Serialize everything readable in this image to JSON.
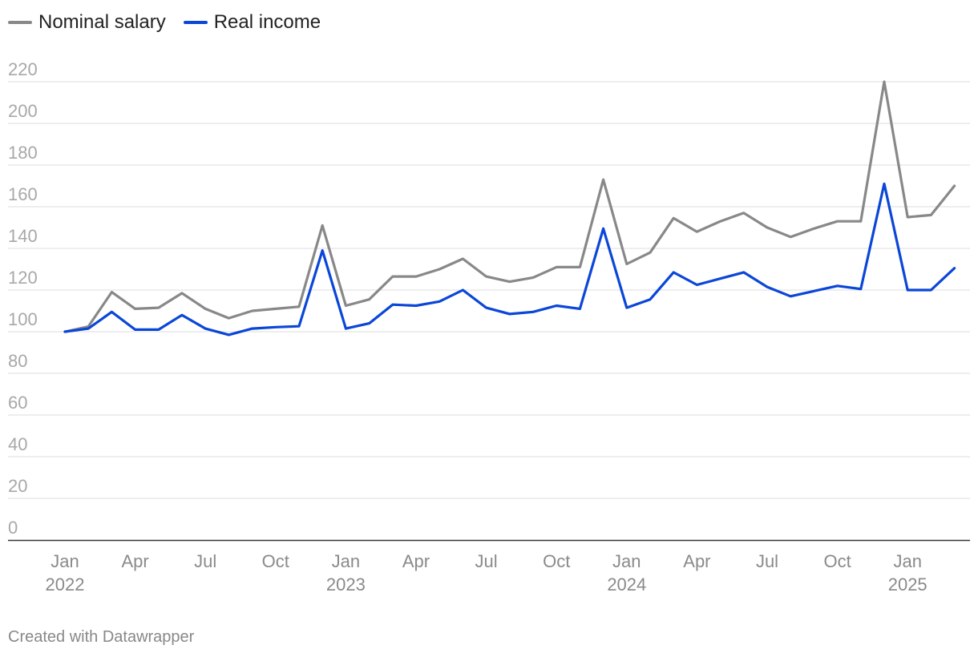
{
  "legend": [
    {
      "label": "Nominal salary",
      "color": "#888888"
    },
    {
      "label": "Real income",
      "color": "#0a46d8"
    }
  ],
  "credit": "Created with Datawrapper",
  "chart_data": {
    "type": "line",
    "title": "",
    "xlabel": "",
    "ylabel": "",
    "ylim": [
      0,
      220
    ],
    "y_ticks": [
      0,
      20,
      40,
      60,
      80,
      100,
      120,
      140,
      160,
      180,
      200,
      220
    ],
    "grid": true,
    "legend_position": "top-left",
    "x": [
      "2022-01",
      "2022-02",
      "2022-03",
      "2022-04",
      "2022-05",
      "2022-06",
      "2022-07",
      "2022-08",
      "2022-09",
      "2022-10",
      "2022-11",
      "2022-12",
      "2023-01",
      "2023-02",
      "2023-03",
      "2023-04",
      "2023-05",
      "2023-06",
      "2023-07",
      "2023-08",
      "2023-09",
      "2023-10",
      "2023-11",
      "2023-12",
      "2024-01",
      "2024-02",
      "2024-03",
      "2024-04",
      "2024-05",
      "2024-06",
      "2024-07",
      "2024-08",
      "2024-09",
      "2024-10",
      "2024-11",
      "2024-12",
      "2025-01",
      "2025-02",
      "2025-03"
    ],
    "x_ticks": [
      {
        "x": "2022-01",
        "label": "Jan",
        "year": "2022"
      },
      {
        "x": "2022-04",
        "label": "Apr",
        "year": ""
      },
      {
        "x": "2022-07",
        "label": "Jul",
        "year": ""
      },
      {
        "x": "2022-10",
        "label": "Oct",
        "year": ""
      },
      {
        "x": "2023-01",
        "label": "Jan",
        "year": "2023"
      },
      {
        "x": "2023-04",
        "label": "Apr",
        "year": ""
      },
      {
        "x": "2023-07",
        "label": "Jul",
        "year": ""
      },
      {
        "x": "2023-10",
        "label": "Oct",
        "year": ""
      },
      {
        "x": "2024-01",
        "label": "Jan",
        "year": "2024"
      },
      {
        "x": "2024-04",
        "label": "Apr",
        "year": ""
      },
      {
        "x": "2024-07",
        "label": "Jul",
        "year": ""
      },
      {
        "x": "2024-10",
        "label": "Oct",
        "year": ""
      },
      {
        "x": "2025-01",
        "label": "Jan",
        "year": "2025"
      }
    ],
    "series": [
      {
        "name": "Nominal salary",
        "color": "#888888",
        "values": [
          100,
          102.5,
          119,
          111,
          111.5,
          118.5,
          111,
          106.5,
          110,
          111,
          112,
          151,
          112.5,
          115.5,
          126.5,
          126.5,
          130,
          135,
          126.5,
          124,
          126,
          131,
          131,
          173,
          132.5,
          138,
          154.5,
          148,
          153,
          157,
          150,
          145.5,
          149.5,
          153,
          153,
          220,
          155,
          156,
          170
        ]
      },
      {
        "name": "Real income",
        "color": "#0a46d8",
        "values": [
          100,
          101.5,
          109.5,
          101,
          101,
          108,
          101.5,
          98.5,
          101.5,
          102.2,
          102.6,
          139,
          101.5,
          104,
          113,
          112.5,
          114.5,
          120,
          111.5,
          108.5,
          109.5,
          112.5,
          111,
          149.5,
          111.5,
          115.5,
          128.5,
          122.5,
          125.5,
          128.5,
          121.5,
          117,
          119.5,
          122,
          120.5,
          171,
          120,
          120,
          130.5
        ]
      }
    ]
  }
}
